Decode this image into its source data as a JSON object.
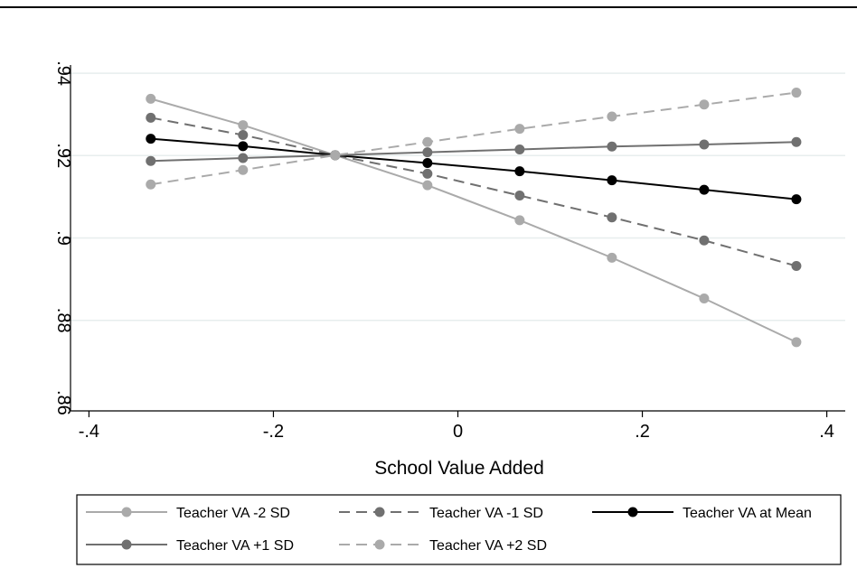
{
  "chart_data": {
    "type": "line",
    "title": "",
    "xlabel": "School Value Added",
    "ylabel": "",
    "xlim": [
      -0.42,
      0.42
    ],
    "ylim": [
      0.858,
      0.942
    ],
    "grid": true,
    "legend_position": "bottom",
    "x_ticks": [
      -0.4,
      -0.2,
      0,
      0.2,
      0.4
    ],
    "x_tick_labels": [
      "-.4",
      "-.2",
      "0",
      ".2",
      ".4"
    ],
    "y_ticks": [
      0.86,
      0.88,
      0.9,
      0.92,
      0.94
    ],
    "y_tick_labels": [
      ".86",
      ".88",
      ".9",
      ".92",
      ".94"
    ],
    "x": [
      -0.333,
      -0.233,
      -0.133,
      -0.033,
      0.067,
      0.167,
      0.267,
      0.367
    ],
    "series": [
      {
        "name": "Teacher VA -2 SD",
        "color": "#aaaaaa",
        "dash": "solid",
        "values": [
          0.9338,
          0.9274,
          0.9201,
          0.9128,
          0.9043,
          0.8952,
          0.8853,
          0.8747
        ]
      },
      {
        "name": "Teacher VA -1 SD",
        "color": "#707070",
        "dash": "dashed",
        "values": [
          0.9292,
          0.925,
          0.9201,
          0.9156,
          0.9103,
          0.905,
          0.8994,
          0.8932
        ]
      },
      {
        "name": "Teacher VA at Mean",
        "color": "#000000",
        "dash": "solid",
        "values": [
          0.9241,
          0.9223,
          0.9201,
          0.9182,
          0.9162,
          0.914,
          0.9117,
          0.9094
        ]
      },
      {
        "name": "Teacher VA +1 SD",
        "color": "#707070",
        "dash": "solid",
        "values": [
          0.9187,
          0.9194,
          0.9201,
          0.9208,
          0.9215,
          0.9222,
          0.9227,
          0.9233
        ]
      },
      {
        "name": "Teacher VA +2 SD",
        "color": "#aaaaaa",
        "dash": "dashed",
        "values": [
          0.913,
          0.9165,
          0.9201,
          0.9233,
          0.9265,
          0.9295,
          0.9324,
          0.9353
        ]
      }
    ]
  }
}
